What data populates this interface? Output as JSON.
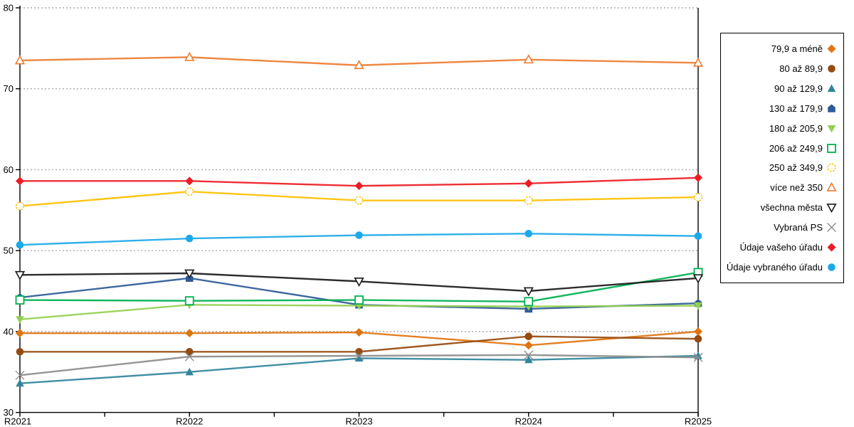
{
  "chart_data": {
    "type": "line",
    "title": "",
    "xlabel": "",
    "ylabel": "",
    "categories": [
      "R2021",
      "R2022",
      "R2023",
      "R2024",
      "R2025"
    ],
    "ylim": [
      30,
      80
    ],
    "yticks": [
      30,
      40,
      50,
      60,
      70,
      80
    ],
    "grid": "horizontal-dotted",
    "legend_position": "right",
    "series": [
      {
        "name": "79,9 a méně",
        "color": "#E0740F",
        "marker": "diamond",
        "fill": "filled",
        "values": [
          39.8,
          39.8,
          39.9,
          38.3,
          40.0
        ]
      },
      {
        "name": "80 až 89,9",
        "color": "#964B0F",
        "marker": "circle",
        "fill": "filled",
        "values": [
          37.5,
          37.5,
          37.5,
          39.4,
          39.1
        ]
      },
      {
        "name": "90 až 129,9",
        "color": "#31849B",
        "marker": "triangle-up",
        "fill": "filled",
        "values": [
          33.6,
          35.0,
          36.7,
          36.5,
          37.0
        ]
      },
      {
        "name": "130 až 179,9",
        "color": "#2E5B97",
        "marker": "pentagon",
        "fill": "filled",
        "values": [
          44.2,
          46.6,
          43.3,
          42.8,
          43.5
        ]
      },
      {
        "name": "180 až 205,9",
        "color": "#92D050",
        "marker": "triangle-down",
        "fill": "filled",
        "values": [
          41.5,
          43.3,
          43.2,
          43.1,
          43.2
        ]
      },
      {
        "name": "206 až 249,9",
        "color": "#00B050",
        "marker": "square",
        "fill": "open",
        "values": [
          43.9,
          43.8,
          43.9,
          43.7,
          47.3
        ]
      },
      {
        "name": "250 až 349,9",
        "color": "#FFC000",
        "marker": "circle-dashed",
        "fill": "open",
        "values": [
          55.5,
          57.3,
          56.2,
          56.2,
          56.6
        ]
      },
      {
        "name": "více než 350",
        "color": "#ED7D31",
        "marker": "triangle-up",
        "fill": "open",
        "values": [
          73.5,
          73.9,
          72.9,
          73.6,
          73.2
        ]
      },
      {
        "name": "všechna města",
        "color": "#1A1A1A",
        "marker": "triangle-down",
        "fill": "open",
        "values": [
          47.0,
          47.2,
          46.2,
          45.0,
          46.6
        ]
      },
      {
        "name": "Vybraná PS",
        "color": "#8C8C8C",
        "marker": "x",
        "fill": "open",
        "values": [
          34.6,
          36.9,
          37.0,
          37.1,
          36.8
        ]
      },
      {
        "name": "Údaje vašeho úřadu",
        "color": "#ED1C24",
        "marker": "diamond",
        "fill": "filled",
        "values": [
          58.6,
          58.6,
          58.0,
          58.3,
          59.0
        ]
      },
      {
        "name": "Údaje vybraného úřadu",
        "color": "#1CA9E8",
        "marker": "circle",
        "fill": "filled",
        "values": [
          50.7,
          51.5,
          51.9,
          52.1,
          51.8
        ]
      }
    ],
    "colors": {
      "axis": "#000000",
      "gridline": "#AAAAAA",
      "background": "#FFFFFF"
    }
  }
}
